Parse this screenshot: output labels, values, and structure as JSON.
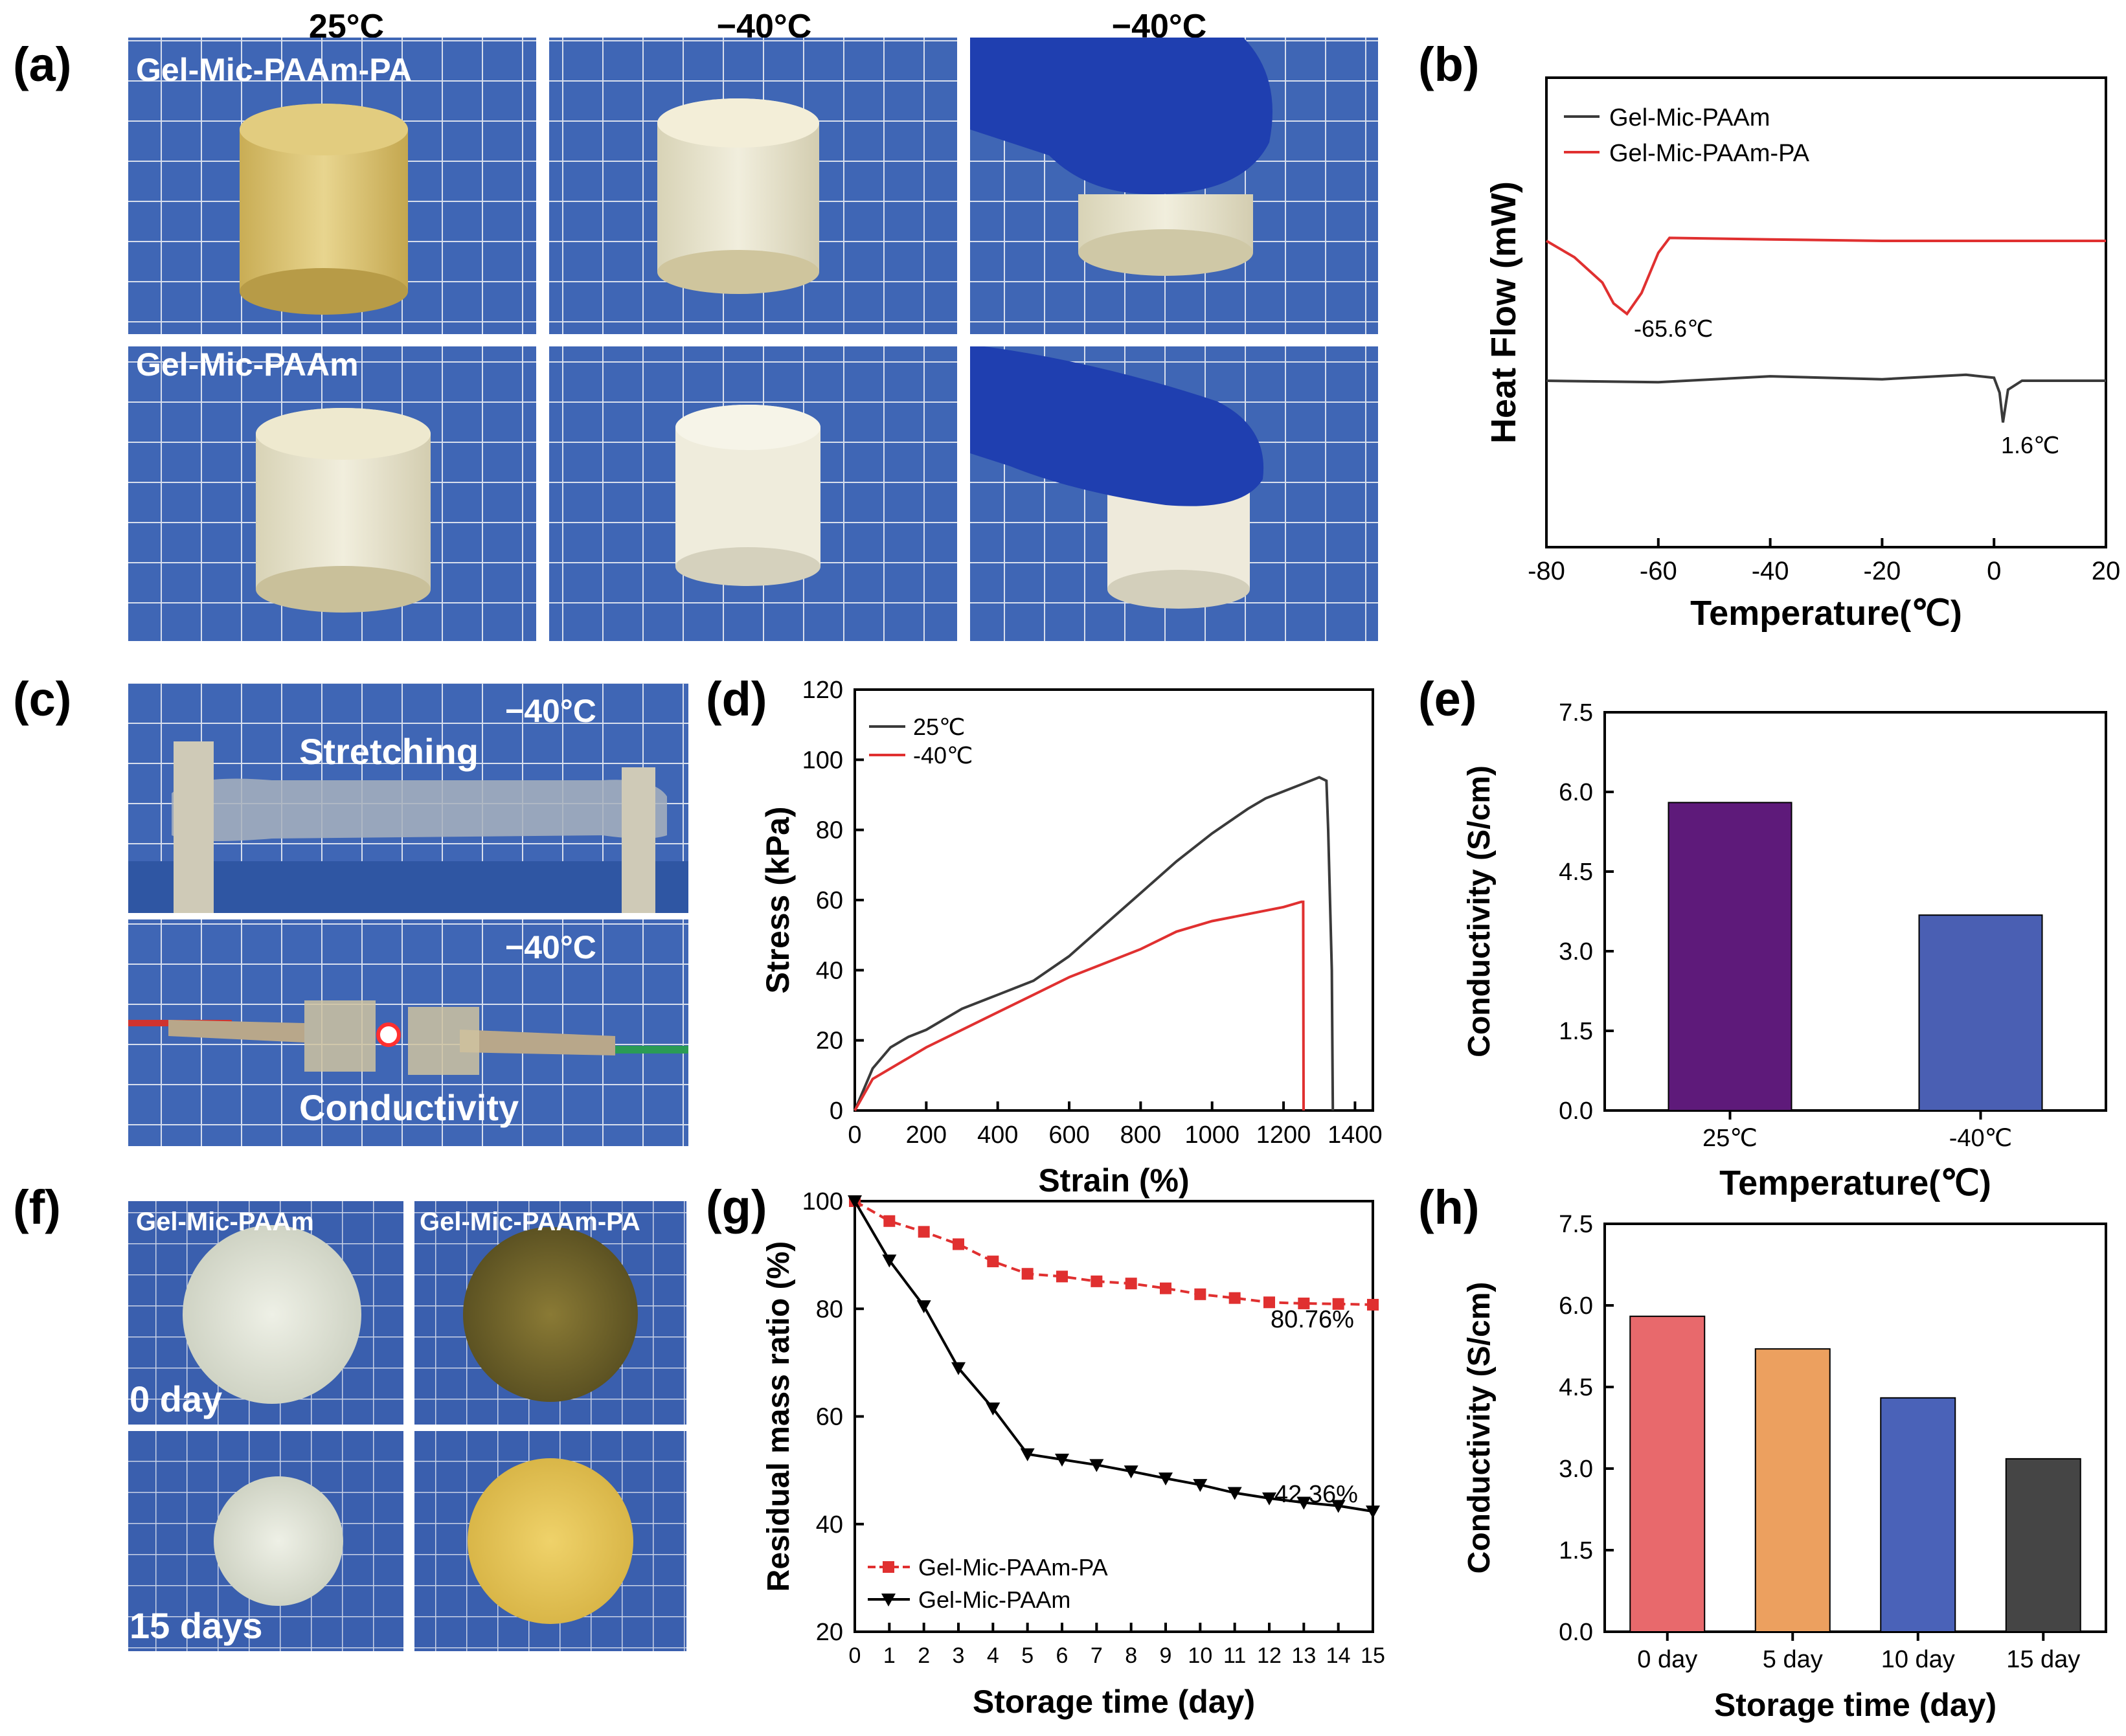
{
  "panel_labels": {
    "a": "(a)",
    "b": "(b)",
    "c": "(c)",
    "d": "(d)",
    "e": "(e)",
    "f": "(f)",
    "g": "(g)",
    "h": "(h)"
  },
  "colors": {
    "black_line": "#3a3a3a",
    "red_line": "#e03030",
    "bar_purple": "#5e1a7a",
    "bar_blue": "#4a5fb3",
    "bar_red": "#e8696c",
    "bar_orange": "#eca05f",
    "bar_blue2": "#4a62b8",
    "bar_gray": "#454545",
    "photo_grid": "#3f66b5",
    "gel_yellow": "#d9c277",
    "gel_white": "#e6e2cc",
    "glove_blue": "#1f3fb0"
  },
  "panel_a": {
    "col_titles": [
      "25°C",
      "−40°C",
      "−40°C"
    ],
    "row_labels": [
      "Gel-Mic-PAAm-PA",
      "Gel-Mic-PAAm"
    ]
  },
  "panel_c": {
    "temps": [
      "−40°C",
      "−40°C"
    ],
    "captions": [
      "Stretching",
      "Conductivity"
    ]
  },
  "panel_f": {
    "col_labels": [
      "Gel-Mic-PAAm",
      "Gel-Mic-PAAm-PA"
    ],
    "row_labels": [
      "0 day",
      "15 days"
    ]
  },
  "chart_data": [
    {
      "panel": "b",
      "type": "line",
      "xlabel": "Temperature(℃)",
      "ylabel": "Heat Flow (mW)",
      "xlim": [
        -80,
        20
      ],
      "xticks": [
        "-80",
        "-60",
        "-40",
        "-20",
        "0",
        "20"
      ],
      "legend": [
        "Gel-Mic-PAAm",
        "Gel-Mic-PAAm-PA"
      ],
      "annotations": [
        "-65.6℃",
        "1.6℃"
      ],
      "series": [
        {
          "name": "Gel-Mic-PAAm",
          "peak_x": 1.6,
          "x": [
            -80,
            -60,
            -40,
            -20,
            -5,
            0,
            1,
            1.6,
            2.5,
            5,
            20
          ],
          "y": [
            0.0,
            -0.1,
            0.3,
            0.1,
            0.4,
            0.2,
            -0.8,
            -2.8,
            -0.6,
            0.0,
            0.0
          ]
        },
        {
          "name": "Gel-Mic-PAAm-PA",
          "peak_x": -65.6,
          "x": [
            -80,
            -75,
            -70,
            -68,
            -65.6,
            -63,
            -60,
            -58,
            -40,
            -20,
            0,
            20
          ],
          "y": [
            0.0,
            -1.1,
            -2.8,
            -4.2,
            -4.9,
            -3.5,
            -0.8,
            0.2,
            0.1,
            0.0,
            0.0,
            0.0
          ]
        }
      ]
    },
    {
      "panel": "d",
      "type": "line",
      "xlabel": "Strain (%)",
      "ylabel": "Stress (kPa)",
      "xlim": [
        0,
        1450
      ],
      "ylim": [
        0,
        120
      ],
      "xticks": [
        "0",
        "200",
        "400",
        "600",
        "800",
        "1000",
        "1200",
        "1400"
      ],
      "yticks": [
        "0",
        "20",
        "40",
        "60",
        "80",
        "100",
        "120"
      ],
      "legend": [
        "25℃",
        "-40℃"
      ],
      "series": [
        {
          "name": "25℃",
          "x": [
            0,
            50,
            100,
            150,
            200,
            300,
            400,
            500,
            600,
            700,
            800,
            900,
            1000,
            1100,
            1150,
            1200,
            1250,
            1300,
            1320,
            1325,
            1335,
            1338
          ],
          "y": [
            0,
            12,
            18,
            21,
            23,
            29,
            33,
            37,
            44,
            53,
            62,
            71,
            79,
            86,
            89,
            91,
            93,
            95,
            94,
            80,
            40,
            0
          ]
        },
        {
          "name": "-40℃",
          "x": [
            0,
            50,
            100,
            150,
            200,
            300,
            400,
            500,
            600,
            700,
            800,
            900,
            1000,
            1100,
            1200,
            1250,
            1255,
            1256
          ],
          "y": [
            0,
            9,
            12,
            15,
            18,
            23,
            28,
            33,
            38,
            42,
            46,
            51,
            54,
            56,
            58,
            59.5,
            59.5,
            0
          ]
        }
      ]
    },
    {
      "panel": "e",
      "type": "bar",
      "xlabel": "Temperature(℃)",
      "ylabel": "Conductivity (S/cm)",
      "ylim": [
        0,
        7.5
      ],
      "yticks": [
        "0.0",
        "1.5",
        "3.0",
        "4.5",
        "6.0",
        "7.5"
      ],
      "categories": [
        "25℃",
        "-40℃"
      ],
      "values": [
        5.8,
        3.68
      ]
    },
    {
      "panel": "g",
      "type": "line",
      "xlabel": "Storage time (day)",
      "ylabel": "Residual mass ratio (%)",
      "xlim": [
        0,
        15
      ],
      "ylim": [
        20,
        100
      ],
      "xticks": [
        "0",
        "1",
        "2",
        "3",
        "4",
        "5",
        "6",
        "7",
        "8",
        "9",
        "10",
        "11",
        "12",
        "13",
        "14",
        "15"
      ],
      "yticks": [
        "20",
        "40",
        "60",
        "80",
        "100"
      ],
      "legend": [
        "Gel-Mic-PAAm-PA",
        "Gel-Mic-PAAm"
      ],
      "annotations": [
        "80.76%",
        "42.36%"
      ],
      "x": [
        0,
        1,
        2,
        3,
        4,
        5,
        6,
        7,
        8,
        9,
        10,
        11,
        12,
        13,
        14,
        15
      ],
      "series": [
        {
          "name": "Gel-Mic-PAAm-PA",
          "values": [
            100,
            96.3,
            94.3,
            92.0,
            88.8,
            86.5,
            86.0,
            85.1,
            84.7,
            83.8,
            82.7,
            82.0,
            81.2,
            81.0,
            80.9,
            80.76
          ]
        },
        {
          "name": "Gel-Mic-PAAm",
          "values": [
            100,
            89.0,
            80.5,
            69.0,
            61.5,
            53.0,
            52.0,
            51.0,
            49.8,
            48.5,
            47.3,
            45.8,
            44.8,
            44.0,
            43.4,
            42.36
          ]
        }
      ]
    },
    {
      "panel": "h",
      "type": "bar",
      "xlabel": "Storage time (day)",
      "ylabel": "Conductivity (S/cm)",
      "ylim": [
        0,
        7.5
      ],
      "yticks": [
        "0.0",
        "1.5",
        "3.0",
        "4.5",
        "6.0",
        "7.5"
      ],
      "categories": [
        "0 day",
        "5 day",
        "10 day",
        "15 day"
      ],
      "values": [
        5.8,
        5.2,
        4.3,
        3.18
      ]
    }
  ]
}
